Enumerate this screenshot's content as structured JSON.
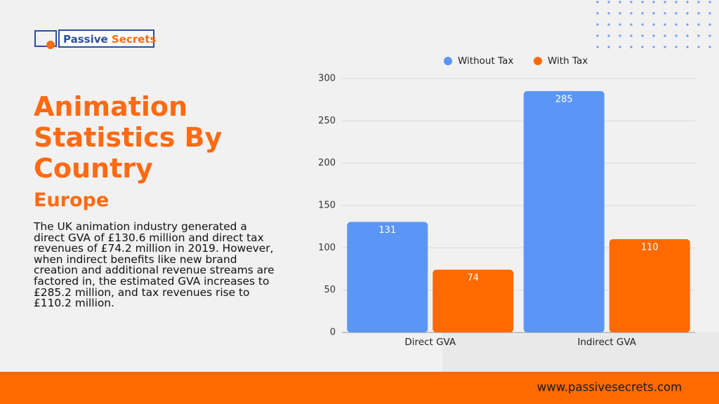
{
  "logo": {
    "word1": "Passive",
    "word2": "Secrets"
  },
  "heading": "Animation Statistics By Country",
  "subheading": "Europe",
  "body": "The UK animation industry generated a direct GVA of £130.6 million and direct tax revenues of £74.2 million in 2019. However, when indirect benefits like new brand creation and additional revenue streams are factored in, the estimated GVA increases to £285.2 million, and tax revenues rise to £110.2 million.",
  "footer": {
    "url": "www.passivesecrets.com"
  },
  "chart_data": {
    "type": "bar",
    "categories": [
      "Direct GVA",
      "Indirect GVA"
    ],
    "series": [
      {
        "name": "Without Tax",
        "color": "#5b96f7",
        "values": [
          130.6,
          285.2
        ],
        "value_labels": [
          "131",
          "285"
        ]
      },
      {
        "name": "With Tax",
        "color": "#ff6a00",
        "values": [
          74.2,
          110.2
        ],
        "value_labels": [
          "74",
          "110"
        ]
      }
    ],
    "ylim": [
      0,
      300
    ],
    "yticks": [
      0,
      50,
      100,
      150,
      200,
      250,
      300
    ],
    "grid": true,
    "legend": "top"
  }
}
